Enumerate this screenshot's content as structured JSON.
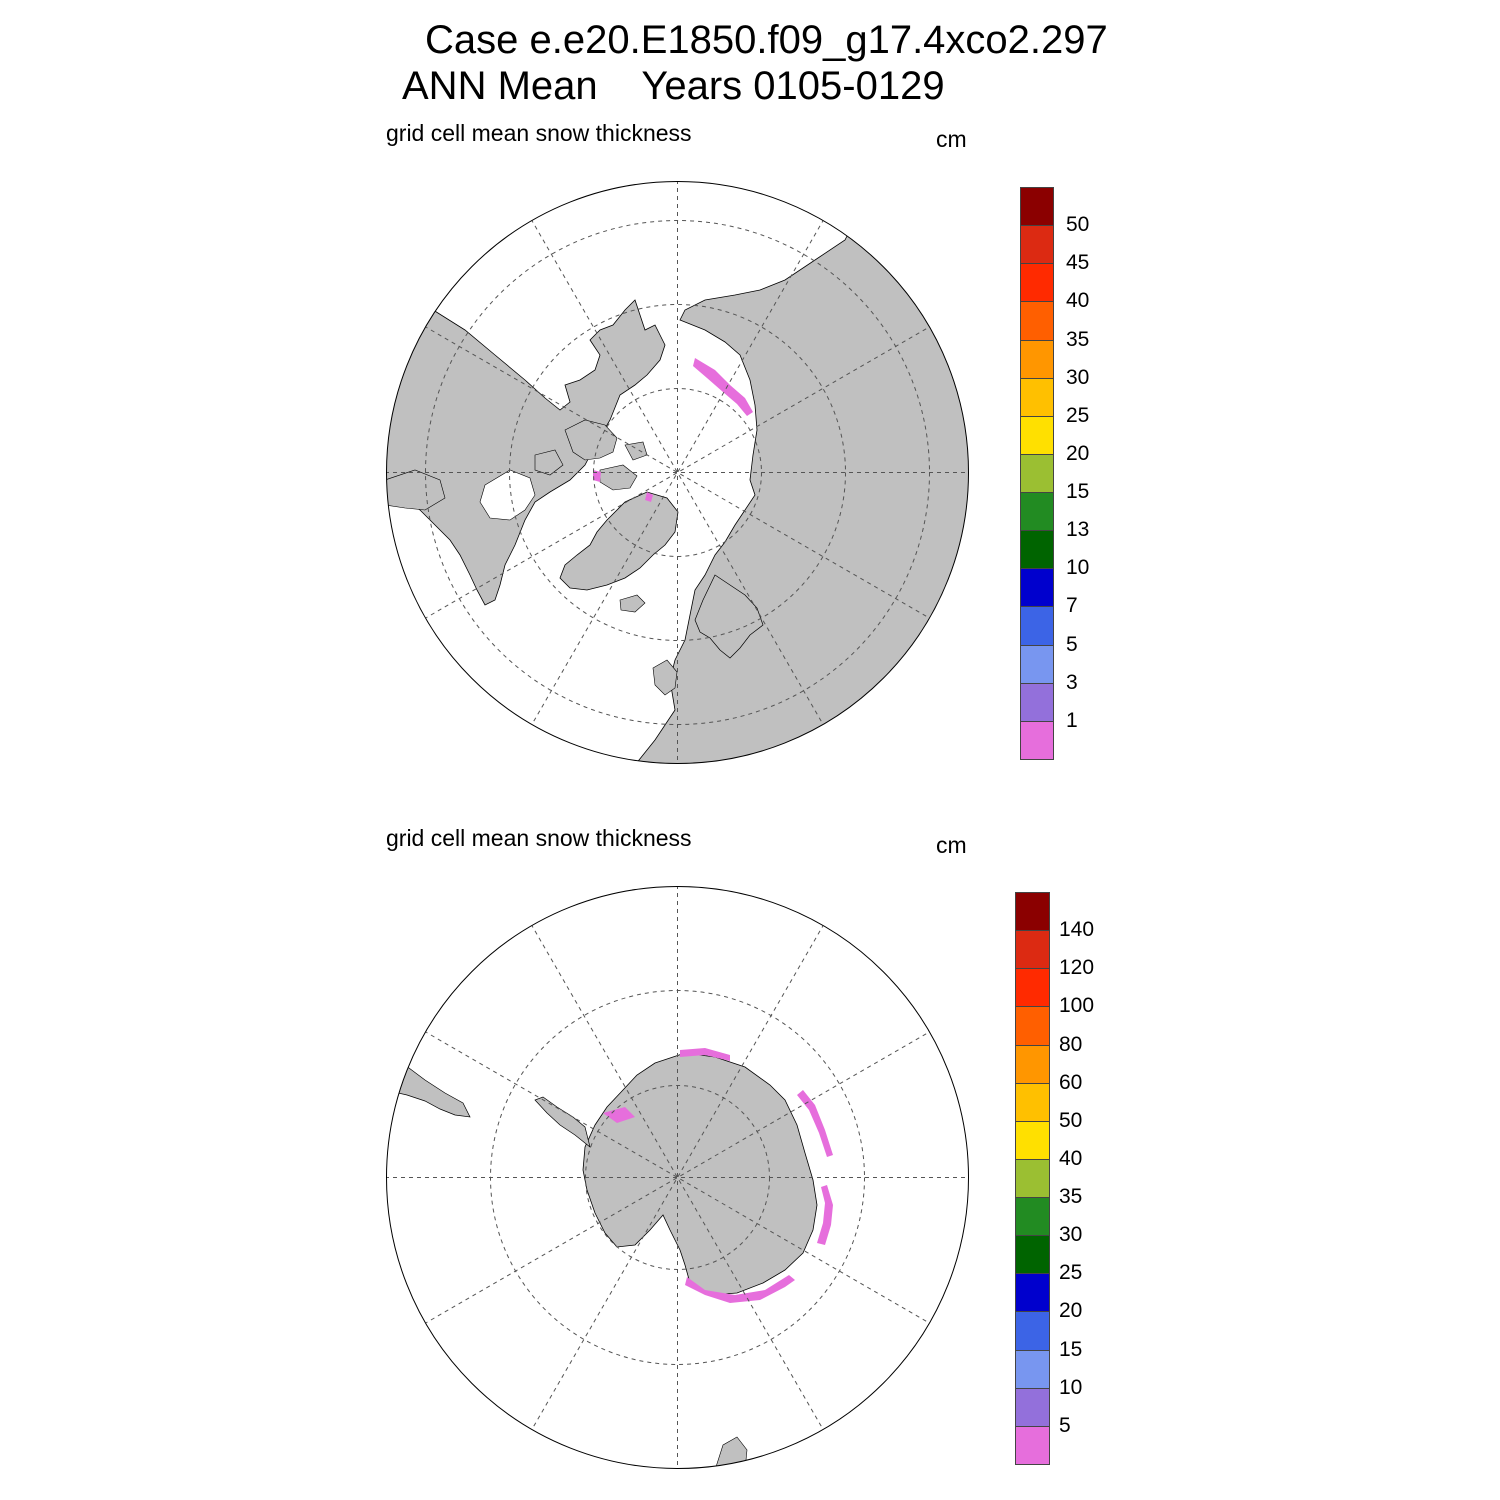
{
  "title": {
    "line1": "Case e.e20.E1850.f09_g17.4xco2.297",
    "line2": "ANN Mean    Years 0105-0129"
  },
  "north": {
    "field_label": "grid cell mean snow thickness",
    "unit": "cm",
    "hemisphere": "Northern",
    "colorbar": {
      "labels": [
        "50",
        "45",
        "40",
        "35",
        "30",
        "25",
        "20",
        "15",
        "13",
        "10",
        "7",
        "5",
        "3",
        "1"
      ],
      "colors": [
        "#8b0000",
        "#dc2a12",
        "#ff2a00",
        "#ff5f00",
        "#ff9600",
        "#ffc000",
        "#ffe000",
        "#9bbf32",
        "#228b22",
        "#006400",
        "#0000cd",
        "#3c64e6",
        "#7896f0",
        "#9370db",
        "#e66edc"
      ]
    }
  },
  "south": {
    "field_label": "grid cell mean snow thickness",
    "unit": "cm",
    "hemisphere": "Southern",
    "colorbar": {
      "labels": [
        "140",
        "120",
        "100",
        "80",
        "60",
        "50",
        "40",
        "35",
        "30",
        "25",
        "20",
        "15",
        "10",
        "5"
      ],
      "colors": [
        "#8b0000",
        "#dc2a12",
        "#ff2a00",
        "#ff5f00",
        "#ff9600",
        "#ffc000",
        "#ffe000",
        "#9bbf32",
        "#228b22",
        "#006400",
        "#0000cd",
        "#3c64e6",
        "#7896f0",
        "#9370db",
        "#e66edc"
      ]
    }
  },
  "style": {
    "land": "#c0c0c0",
    "snow_min": "#e66edc",
    "ocean": "#ffffff"
  }
}
